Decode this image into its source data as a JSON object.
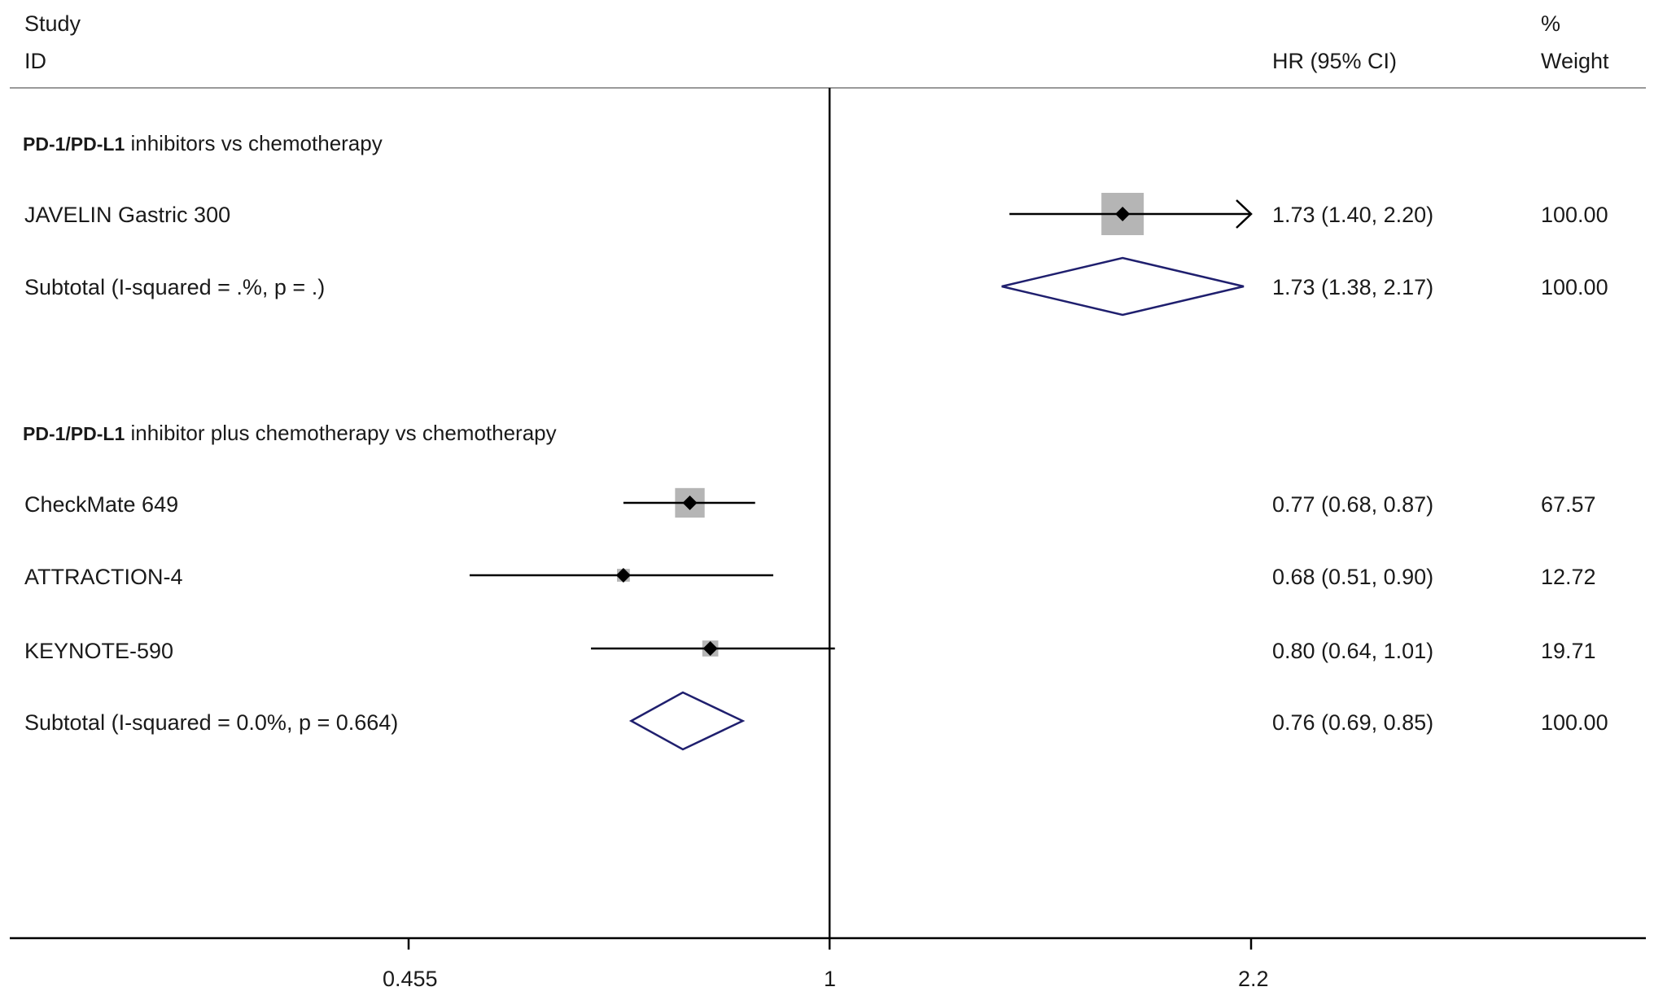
{
  "header": {
    "study_line1": "Study",
    "study_line2": "ID",
    "hr_label": "HR (95% CI)",
    "weight_line1": "%",
    "weight_line2": "Weight"
  },
  "subgroups": [
    {
      "title_bold": "PD-1/PD-L1",
      "title_rest": " inhibitors vs chemotherapy"
    },
    {
      "title_bold": "PD-1/PD-L1",
      "title_rest": " inhibitor plus chemotherapy vs chemotherapy"
    }
  ],
  "rows": [
    {
      "label": "JAVELIN Gastric 300",
      "hr_text": "1.73 (1.40, 2.20)",
      "weight": "100.00"
    },
    {
      "label": "Subtotal  (I-squared = .%, p = .)",
      "hr_text": "1.73 (1.38, 2.17)",
      "weight": "100.00"
    },
    {
      "label": "CheckMate 649",
      "hr_text": "0.77 (0.68, 0.87)",
      "weight": "67.57"
    },
    {
      "label": "ATTRACTION-4",
      "hr_text": "0.68 (0.51, 0.90)",
      "weight": "12.72"
    },
    {
      "label": "KEYNOTE-590",
      "hr_text": "0.80 (0.64, 1.01)",
      "weight": "19.71"
    },
    {
      "label": "Subtotal  (I-squared = 0.0%, p = 0.664)",
      "hr_text": "0.76 (0.69, 0.85)",
      "weight": "100.00"
    }
  ],
  "axis": {
    "ticks": [
      "0.455",
      "1",
      "2.2"
    ]
  },
  "colors": {
    "line": "#000000",
    "box": "#b5b5b5",
    "diamond": "#1f1f6e"
  },
  "chart_data": {
    "type": "forest",
    "scale": "log",
    "xlim": [
      0.455,
      2.2
    ],
    "reference_line": 1,
    "x_ticks": [
      0.455,
      1,
      2.2
    ],
    "studies": [
      {
        "name": "JAVELIN Gastric 300",
        "group": 0,
        "hr": 1.73,
        "lo": 1.4,
        "hi": 2.2,
        "weight": 100.0,
        "arrow_right": true
      },
      {
        "name": "CheckMate 649",
        "group": 1,
        "hr": 0.77,
        "lo": 0.68,
        "hi": 0.87,
        "weight": 67.57
      },
      {
        "name": "ATTRACTION-4",
        "group": 1,
        "hr": 0.68,
        "lo": 0.51,
        "hi": 0.9,
        "weight": 12.72
      },
      {
        "name": "KEYNOTE-590",
        "group": 1,
        "hr": 0.8,
        "lo": 0.64,
        "hi": 1.01,
        "weight": 19.71
      }
    ],
    "subtotals": [
      {
        "group": 0,
        "hr": 1.73,
        "lo": 1.38,
        "hi": 2.17,
        "i_squared": ".%",
        "p": "."
      },
      {
        "group": 1,
        "hr": 0.76,
        "lo": 0.69,
        "hi": 0.85,
        "i_squared": "0.0%",
        "p": "0.664"
      }
    ]
  }
}
